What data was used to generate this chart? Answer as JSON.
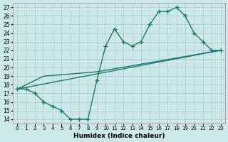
{
  "xlabel": "Humidex (Indice chaleur)",
  "ylabel": "",
  "xlim": [
    -0.5,
    23.5
  ],
  "ylim": [
    13.5,
    27.5
  ],
  "xticks": [
    0,
    1,
    2,
    3,
    4,
    5,
    6,
    7,
    8,
    9,
    10,
    11,
    12,
    13,
    14,
    15,
    16,
    17,
    18,
    19,
    20,
    21,
    22,
    23
  ],
  "yticks": [
    14,
    15,
    16,
    17,
    18,
    19,
    20,
    21,
    22,
    23,
    24,
    25,
    26,
    27
  ],
  "bg_color": "#cde8e8",
  "line_color": "#1a7a6e",
  "line1_x": [
    0,
    1,
    2,
    3,
    4,
    5,
    6,
    7,
    8,
    9,
    10,
    11,
    12,
    13,
    14,
    15,
    16,
    17,
    18,
    19,
    20,
    21,
    22,
    23
  ],
  "line1_y": [
    17.5,
    17.5,
    17.0,
    16.0,
    15.5,
    15.0,
    14.0,
    14.0,
    14.0,
    18.5,
    22.5,
    24.5,
    23.0,
    22.5,
    23.0,
    25.0,
    26.5,
    26.5,
    27.0,
    26.0,
    24.0,
    23.0,
    22.0,
    22.0
  ],
  "line2_x": [
    0,
    23
  ],
  "line2_y": [
    17.5,
    22.0
  ],
  "line3_x": [
    0,
    3,
    9,
    23
  ],
  "line3_y": [
    17.5,
    19.0,
    19.5,
    22.0
  ]
}
